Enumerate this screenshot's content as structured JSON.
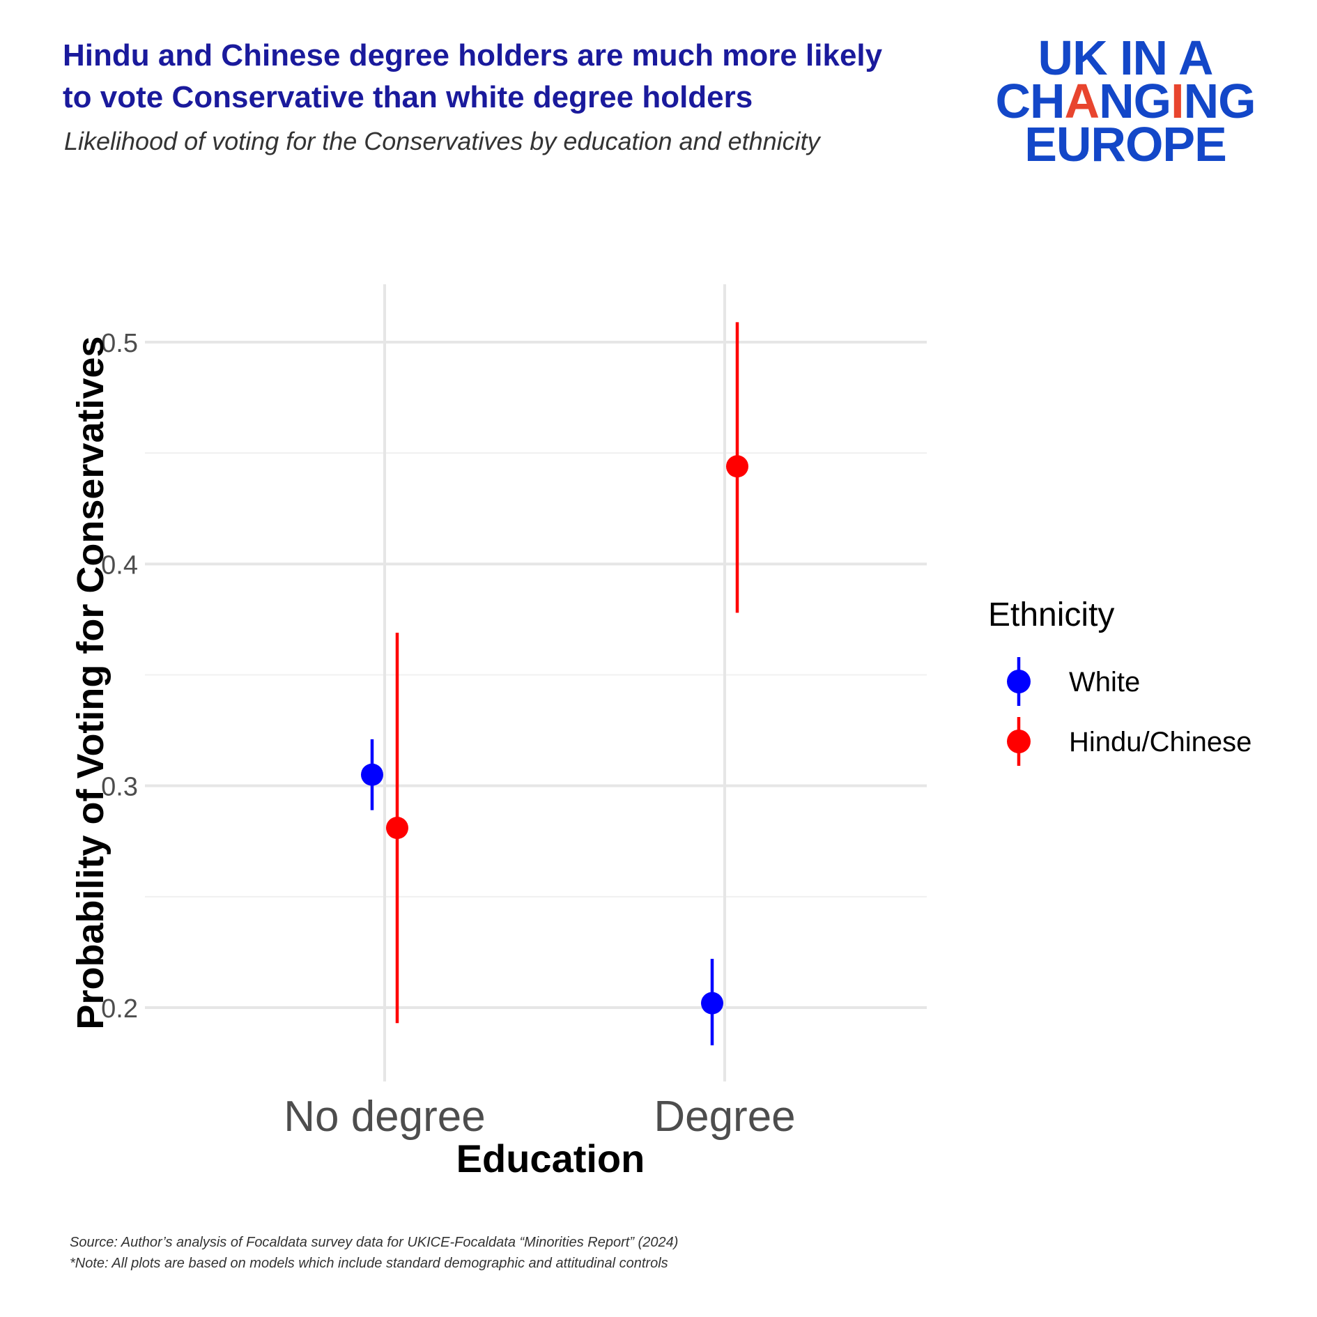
{
  "header": {
    "title_line1": "Hindu and Chinese degree holders are much more likely",
    "title_line2": "to vote Conservative than white degree holders",
    "subtitle": "Likelihood of voting for the Conservatives by education and ethnicity"
  },
  "logo": {
    "line1": "UK IN A",
    "line2_part1": "CH",
    "line2_accent1": "A",
    "line2_part2": "NG",
    "line2_accent2": "I",
    "line2_part3": "NG",
    "line3": "EUROPE",
    "color": "#1347c8",
    "accent_color": "#e8452e"
  },
  "chart_data": {
    "type": "scatter",
    "xlabel": "Education",
    "ylabel": "Probability of Voting for Conservatives",
    "categories": [
      "No degree",
      "Degree"
    ],
    "ylim": [
      0.165,
      0.525
    ],
    "yticks": [
      0.2,
      0.3,
      0.4,
      0.5
    ],
    "yticks_labels": [
      "0.2",
      "0.3",
      "0.4",
      "0.5"
    ],
    "grid": true,
    "legend": {
      "title": "Ethnicity",
      "placement": "right"
    },
    "series": [
      {
        "name": "White",
        "color": "#0000ff",
        "points": [
          {
            "x": "No degree",
            "y": 0.305,
            "lower": 0.289,
            "upper": 0.321
          },
          {
            "x": "Degree",
            "y": 0.202,
            "lower": 0.183,
            "upper": 0.222
          }
        ]
      },
      {
        "name": "Hindu/Chinese",
        "color": "#ff0000",
        "points": [
          {
            "x": "No degree",
            "y": 0.281,
            "lower": 0.193,
            "upper": 0.369
          },
          {
            "x": "Degree",
            "y": 0.444,
            "lower": 0.378,
            "upper": 0.509
          }
        ]
      }
    ]
  },
  "footer": {
    "source": "Source: Author’s analysis of Focaldata survey data for UKICE-Focaldata “Minorities Report” (2024)",
    "note": "*Note: All plots are based on models which include standard demographic and attitudinal controls"
  }
}
